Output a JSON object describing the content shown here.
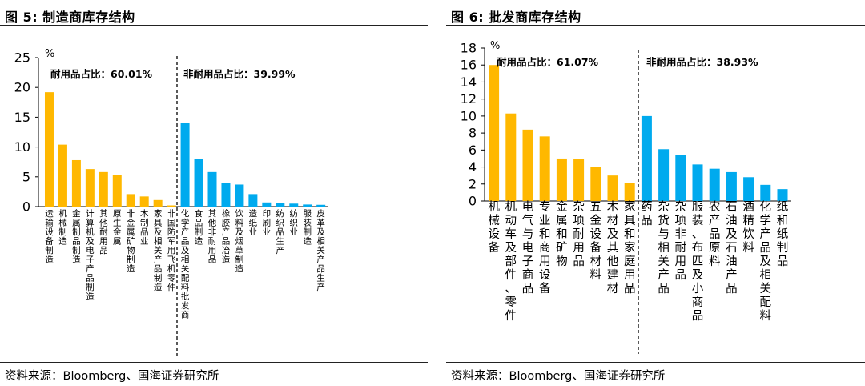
{
  "charts": [
    {
      "title": "图 5:  制造商库存结构",
      "source": "资料来源：Bloomberg、国海证券研究所",
      "chart_data": {
        "type": "bar",
        "title": "图 5:  制造商库存结构",
        "ylabel": "%",
        "ylim": [
          0,
          25
        ],
        "yticks": [
          0,
          5,
          10,
          15,
          20,
          25
        ],
        "grid": false,
        "legend": "none",
        "split_after_index": 9,
        "annotations": [
          "耐用品占比：60.01%",
          "非耐用品占比：39.99%"
        ],
        "colors": {
          "durable": "#FFB800",
          "nondurable": "#00AAEE",
          "axis": "#000000"
        },
        "categories": [
          "运输设备制造",
          "机械制造",
          "金属制品制造",
          "计算机及电子产品制造",
          "其他耐用品",
          "原生金属",
          "非金属矿物制造",
          "木制品业",
          "家具及相关产品制造",
          "非国防军用飞机零件",
          "化学产品及相关配料批发商",
          "食品制造",
          "其他非耐用品",
          "橡胶产品冶造",
          "饮料及烟草制造",
          "造纸业",
          "印刷业",
          "纺织品生产",
          "纺织业",
          "服装制造",
          "皮革及相关产品生产"
        ],
        "values": [
          19.2,
          10.4,
          7.8,
          6.3,
          5.8,
          5.3,
          2.1,
          1.7,
          1.1,
          0.2,
          14.1,
          8.0,
          5.8,
          3.9,
          3.7,
          2.1,
          0.7,
          0.6,
          0.5,
          0.35,
          0.3
        ]
      }
    },
    {
      "title": "图 6:  批发商库存结构",
      "source": "资料来源：Bloomberg、国海证券研究所",
      "chart_data": {
        "type": "bar",
        "title": "图 6:  批发商库存结构",
        "ylabel": "%",
        "ylim": [
          0,
          18
        ],
        "yticks": [
          0,
          2,
          4,
          6,
          8,
          10,
          12,
          14,
          16,
          18
        ],
        "grid": false,
        "legend": "none",
        "split_after_index": 8,
        "annotations": [
          "耐用品占比：61.07%",
          "非耐用品占比：38.93%"
        ],
        "colors": {
          "durable": "#FFB800",
          "nondurable": "#00AAEE",
          "axis": "#000000"
        },
        "categories": [
          "机械设备",
          "机动车及部件、零件",
          "电气与电子商品",
          "专业和商用设备",
          "金属和矿物",
          "杂项耐用品",
          "五金设备材料",
          "木材及其他建材",
          "家具和家庭用品",
          "药品",
          "杂货与相关产品",
          "杂项非耐用品",
          "服装、布匹及小商品",
          "农产品原料",
          "石油及石油产品",
          "酒精饮料",
          "化学产品及相关配料",
          "纸和纸制品"
        ],
        "values": [
          16.0,
          10.3,
          8.4,
          7.6,
          5.0,
          4.9,
          4.0,
          3.0,
          2.1,
          10.0,
          6.1,
          5.4,
          4.3,
          3.8,
          3.4,
          2.8,
          1.9,
          1.4
        ]
      }
    }
  ]
}
